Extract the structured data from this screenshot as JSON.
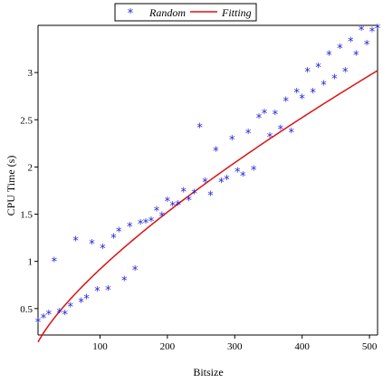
{
  "chart_data": {
    "type": "scatter",
    "xlabel": "Bitsize",
    "ylabel": "CPU Time (s)",
    "xlim": [
      8,
      512
    ],
    "ylim": [
      0.22,
      3.5
    ],
    "xticks": [
      100,
      200,
      300,
      400,
      500
    ],
    "yticks": [
      0.5,
      1,
      1.5,
      2,
      2.5,
      3
    ],
    "xtick_labels": [
      "100",
      "200",
      "300",
      "400",
      "500"
    ],
    "ytick_labels": [
      "0.5",
      "1",
      "1.5",
      "2",
      "2.5",
      "3"
    ],
    "grid": false,
    "legend_position": "top-center",
    "colors": {
      "marker": "#1f1fd6",
      "fit": "#dd1111",
      "axis": "#000000"
    },
    "series": [
      {
        "name": "Random",
        "marker": "star",
        "points": [
          [
            8,
            0.36
          ],
          [
            16,
            0.4
          ],
          [
            24,
            0.44
          ],
          [
            32,
            1.0
          ],
          [
            40,
            0.46
          ],
          [
            48,
            0.44
          ],
          [
            56,
            0.52
          ],
          [
            64,
            1.22
          ],
          [
            72,
            0.57
          ],
          [
            80,
            0.61
          ],
          [
            88,
            1.19
          ],
          [
            96,
            0.69
          ],
          [
            104,
            1.14
          ],
          [
            112,
            0.7
          ],
          [
            120,
            1.25
          ],
          [
            128,
            1.32
          ],
          [
            136,
            0.8
          ],
          [
            144,
            1.37
          ],
          [
            152,
            0.91
          ],
          [
            160,
            1.4
          ],
          [
            168,
            1.41
          ],
          [
            176,
            1.43
          ],
          [
            184,
            1.54
          ],
          [
            192,
            1.48
          ],
          [
            200,
            1.64
          ],
          [
            208,
            1.59
          ],
          [
            216,
            1.6
          ],
          [
            224,
            1.74
          ],
          [
            232,
            1.65
          ],
          [
            240,
            1.72
          ],
          [
            248,
            2.42
          ],
          [
            256,
            1.84
          ],
          [
            264,
            1.7
          ],
          [
            272,
            2.17
          ],
          [
            280,
            1.84
          ],
          [
            288,
            1.87
          ],
          [
            296,
            2.29
          ],
          [
            304,
            1.95
          ],
          [
            312,
            1.91
          ],
          [
            320,
            2.36
          ],
          [
            328,
            1.97
          ],
          [
            336,
            2.52
          ],
          [
            344,
            2.57
          ],
          [
            352,
            2.32
          ],
          [
            360,
            2.56
          ],
          [
            368,
            2.4
          ],
          [
            376,
            2.7
          ],
          [
            384,
            2.37
          ],
          [
            392,
            2.79
          ],
          [
            400,
            2.73
          ],
          [
            408,
            3.01
          ],
          [
            416,
            2.79
          ],
          [
            424,
            3.06
          ],
          [
            432,
            2.87
          ],
          [
            440,
            3.19
          ],
          [
            448,
            2.94
          ],
          [
            456,
            3.26
          ],
          [
            464,
            3.01
          ],
          [
            472,
            3.33
          ],
          [
            480,
            3.19
          ],
          [
            488,
            3.45
          ],
          [
            496,
            3.3
          ],
          [
            504,
            3.44
          ],
          [
            512,
            3.47
          ]
        ]
      },
      {
        "name": "Fitting",
        "line": true,
        "model": {
          "form": "a*x^b",
          "a": 0.0318,
          "b": 0.73
        }
      }
    ]
  }
}
